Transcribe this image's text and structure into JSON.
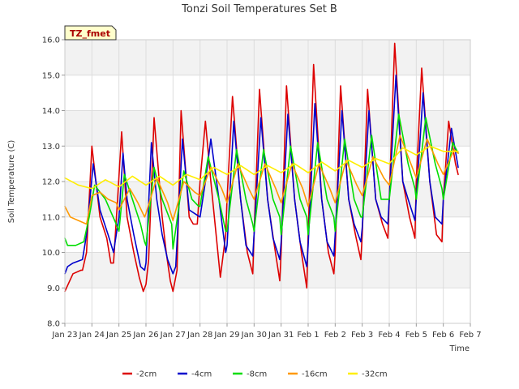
{
  "chart_data": {
    "type": "line",
    "title": "Tonzi Soil Temperatures Set B",
    "xlabel": "Time",
    "ylabel": "Soil Temperature (C)",
    "badge": "TZ_fmet",
    "ylim": [
      8.0,
      16.0
    ],
    "xlim": [
      0,
      15
    ],
    "yticks": [
      8.0,
      9.0,
      10.0,
      11.0,
      12.0,
      13.0,
      14.0,
      15.0,
      16.0
    ],
    "yticklabels": [
      "8.0",
      "9.0",
      "10.0",
      "11.0",
      "12.0",
      "13.0",
      "14.0",
      "15.0",
      "16.0"
    ],
    "xticks": [
      0,
      1,
      2,
      3,
      4,
      5,
      6,
      7,
      8,
      9,
      10,
      11,
      12,
      13,
      14,
      15
    ],
    "xticklabels": [
      "Jan 23",
      "Jan 24",
      "Jan 25",
      "Jan 26",
      "Jan 27",
      "Jan 28",
      "Jan 29",
      "Jan 30",
      "Jan 31",
      "Feb 1",
      "Feb 2",
      "Feb 3",
      "Feb 4",
      "Feb 5",
      "Feb 6",
      "Feb 7"
    ],
    "grid": true,
    "legend_position": "bottom",
    "series": [
      {
        "name": "-2cm",
        "color": "#dd0000",
        "x": [
          0.0,
          0.3,
          0.6,
          0.65,
          0.8,
          1.0,
          1.3,
          1.55,
          1.7,
          1.8,
          1.95,
          2.1,
          2.3,
          2.55,
          2.75,
          2.9,
          3.0,
          3.1,
          3.3,
          3.6,
          3.75,
          3.9,
          4.0,
          4.15,
          4.3,
          4.6,
          4.75,
          4.9,
          5.0,
          5.2,
          5.4,
          5.75,
          5.95,
          6.0,
          6.2,
          6.5,
          6.75,
          6.95,
          7.0,
          7.2,
          7.5,
          7.75,
          7.95,
          8.0,
          8.2,
          8.5,
          8.75,
          8.95,
          9.0,
          9.2,
          9.5,
          9.75,
          9.95,
          10.0,
          10.2,
          10.5,
          10.75,
          10.95,
          11.0,
          11.2,
          11.5,
          11.75,
          11.95,
          12.0,
          12.2,
          12.5,
          12.75,
          12.95,
          13.0,
          13.2,
          13.5,
          13.75,
          13.95,
          14.0,
          14.2,
          14.45,
          14.55
        ],
        "y": [
          8.9,
          9.4,
          9.5,
          9.5,
          10.0,
          13.0,
          11.0,
          10.4,
          9.7,
          9.7,
          11.5,
          13.4,
          11.0,
          10.0,
          9.3,
          8.9,
          9.1,
          9.8,
          13.8,
          11.0,
          10.0,
          9.2,
          8.9,
          9.5,
          14.0,
          11.0,
          10.8,
          10.8,
          12.0,
          13.7,
          12.0,
          9.3,
          10.5,
          11.5,
          14.4,
          11.5,
          10.0,
          9.4,
          10.5,
          14.6,
          11.5,
          10.2,
          9.2,
          10.0,
          14.7,
          11.5,
          10.0,
          9.0,
          10.5,
          15.3,
          11.5,
          10.0,
          9.4,
          10.0,
          14.7,
          11.5,
          10.5,
          9.8,
          10.5,
          14.6,
          11.5,
          10.8,
          10.4,
          11.5,
          15.9,
          12.0,
          11.0,
          10.4,
          12.0,
          15.2,
          12.0,
          10.5,
          10.3,
          11.5,
          13.7,
          12.5,
          12.2
        ]
      },
      {
        "name": "-4cm",
        "color": "#0000cc",
        "x": [
          0.0,
          0.1,
          0.3,
          0.65,
          0.8,
          1.05,
          1.3,
          1.6,
          1.8,
          2.0,
          2.15,
          2.3,
          2.55,
          2.8,
          2.95,
          3.0,
          3.2,
          3.4,
          3.6,
          3.8,
          4.0,
          4.1,
          4.35,
          4.6,
          4.8,
          5.0,
          5.2,
          5.4,
          5.7,
          5.95,
          6.0,
          6.25,
          6.5,
          6.7,
          6.95,
          7.0,
          7.25,
          7.5,
          7.7,
          7.95,
          8.0,
          8.25,
          8.5,
          8.7,
          8.95,
          9.0,
          9.25,
          9.5,
          9.7,
          9.95,
          10.0,
          10.25,
          10.5,
          10.7,
          10.95,
          11.0,
          11.25,
          11.5,
          11.7,
          11.95,
          12.0,
          12.25,
          12.5,
          12.7,
          12.95,
          13.0,
          13.25,
          13.5,
          13.7,
          13.95,
          14.0,
          14.3,
          14.55
        ],
        "y": [
          9.4,
          9.6,
          9.7,
          9.8,
          10.5,
          12.5,
          11.2,
          10.5,
          10.0,
          11.0,
          12.8,
          11.5,
          10.5,
          9.6,
          9.5,
          9.7,
          13.1,
          11.5,
          10.5,
          9.8,
          9.4,
          9.6,
          13.2,
          11.2,
          11.1,
          11.0,
          12.0,
          13.2,
          11.5,
          10.0,
          10.2,
          13.7,
          11.5,
          10.2,
          9.9,
          10.5,
          13.8,
          11.5,
          10.4,
          9.8,
          10.3,
          13.9,
          11.5,
          10.3,
          9.6,
          10.2,
          14.2,
          11.5,
          10.3,
          9.9,
          10.5,
          14.0,
          11.5,
          10.8,
          10.3,
          10.7,
          14.0,
          11.5,
          11.0,
          10.8,
          11.5,
          15.0,
          12.0,
          11.5,
          10.9,
          11.5,
          14.5,
          12.0,
          11.0,
          10.8,
          11.5,
          13.5,
          12.4
        ]
      },
      {
        "name": "-8cm",
        "color": "#00dd00",
        "x": [
          0.0,
          0.1,
          0.4,
          0.7,
          0.9,
          1.1,
          1.5,
          1.9,
          2.0,
          2.2,
          2.5,
          2.8,
          2.95,
          3.0,
          3.3,
          3.6,
          3.95,
          4.0,
          4.4,
          4.7,
          4.95,
          5.0,
          5.3,
          5.7,
          5.95,
          6.0,
          6.35,
          6.7,
          6.95,
          7.0,
          7.35,
          7.7,
          7.95,
          8.0,
          8.35,
          8.7,
          8.95,
          9.0,
          9.35,
          9.7,
          9.95,
          10.0,
          10.35,
          10.7,
          10.95,
          11.0,
          11.35,
          11.7,
          11.95,
          12.0,
          12.35,
          12.7,
          12.95,
          13.0,
          13.35,
          13.7,
          13.95,
          14.0,
          14.35,
          14.55
        ],
        "y": [
          10.4,
          10.2,
          10.2,
          10.3,
          11.0,
          11.9,
          11.5,
          10.8,
          10.6,
          12.2,
          11.5,
          10.8,
          10.3,
          10.2,
          12.4,
          11.5,
          10.8,
          10.1,
          12.3,
          11.5,
          11.3,
          11.3,
          12.7,
          11.5,
          10.6,
          10.6,
          12.9,
          11.5,
          10.8,
          10.6,
          12.9,
          11.5,
          11.0,
          10.5,
          13.0,
          11.5,
          11.0,
          10.5,
          13.1,
          11.5,
          11.0,
          10.6,
          13.2,
          11.5,
          11.0,
          11.0,
          13.3,
          11.5,
          11.5,
          11.5,
          13.9,
          12.5,
          11.8,
          11.5,
          13.8,
          12.5,
          11.8,
          11.5,
          13.1,
          12.8
        ]
      },
      {
        "name": "-16cm",
        "color": "#ff9900",
        "x": [
          0.0,
          0.2,
          0.5,
          0.8,
          1.0,
          1.3,
          1.6,
          1.9,
          2.0,
          2.4,
          2.7,
          2.95,
          3.0,
          3.4,
          3.8,
          4.0,
          4.4,
          4.8,
          5.0,
          5.4,
          5.8,
          6.0,
          6.4,
          6.8,
          7.0,
          7.4,
          7.8,
          8.0,
          8.4,
          8.8,
          9.0,
          9.4,
          9.8,
          10.0,
          10.4,
          10.8,
          11.0,
          11.4,
          11.8,
          12.0,
          12.4,
          12.8,
          13.0,
          13.4,
          13.8,
          14.0,
          14.4,
          14.55
        ],
        "y": [
          11.3,
          11.0,
          10.9,
          10.8,
          11.6,
          11.7,
          11.5,
          11.4,
          11.2,
          11.8,
          11.4,
          11.0,
          11.1,
          12.1,
          11.4,
          10.9,
          12.0,
          11.7,
          11.6,
          12.4,
          11.8,
          11.4,
          12.5,
          11.8,
          11.5,
          12.5,
          11.8,
          11.4,
          12.5,
          11.8,
          11.3,
          12.5,
          11.8,
          11.4,
          12.6,
          11.9,
          11.6,
          12.7,
          12.1,
          11.9,
          13.3,
          12.5,
          12.1,
          13.2,
          12.5,
          12.2,
          12.9,
          12.8
        ]
      },
      {
        "name": "-32cm",
        "color": "#ffee00",
        "x": [
          0.0,
          0.5,
          1.0,
          1.5,
          2.0,
          2.5,
          3.0,
          3.5,
          4.0,
          4.5,
          5.0,
          5.5,
          6.0,
          6.5,
          7.0,
          7.5,
          8.0,
          8.5,
          9.0,
          9.5,
          10.0,
          10.5,
          11.0,
          11.5,
          12.0,
          12.5,
          13.0,
          13.5,
          14.0,
          14.55
        ],
        "y": [
          12.1,
          11.9,
          11.8,
          12.05,
          11.85,
          12.15,
          11.9,
          12.15,
          11.9,
          12.2,
          12.05,
          12.4,
          12.2,
          12.45,
          12.2,
          12.45,
          12.25,
          12.5,
          12.25,
          12.55,
          12.3,
          12.6,
          12.4,
          12.65,
          12.5,
          12.95,
          12.75,
          13.0,
          12.85,
          12.85
        ]
      }
    ]
  }
}
